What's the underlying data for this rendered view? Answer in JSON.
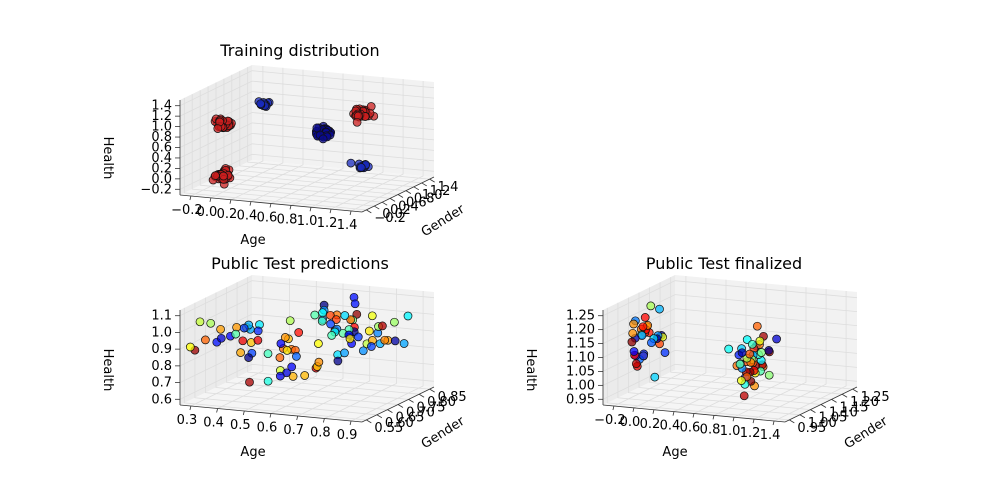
{
  "figure": {
    "background": "#ffffff",
    "pane_color": "#f2f2f2",
    "grid_color": "#dddddd"
  },
  "chart_data": [
    {
      "type": "scatter",
      "subtype": "scatter3d",
      "title": "Training distribution",
      "xlabel": "Age",
      "ylabel": "Gender",
      "zlabel": "Health",
      "x_ticks": [
        "−0.2",
        "0.0",
        "0.2",
        "0.4",
        "0.6",
        "0.8",
        "1.0",
        "1.2",
        "1.4"
      ],
      "y_ticks": [
        "−0.2",
        "0.0",
        "0.2",
        "0.4",
        "0.6",
        "0.8",
        "1.0",
        "1.2",
        "1.4"
      ],
      "z_ticks": [
        "−0.2",
        "0.0",
        "0.2",
        "0.4",
        "0.6",
        "0.8",
        "1.0",
        "1.2",
        "1.4"
      ],
      "xlim": [
        -0.2,
        1.4
      ],
      "ylim": [
        -0.2,
        1.4
      ],
      "zlim": [
        -0.2,
        1.4
      ],
      "grid": true,
      "colormap": "jet",
      "clusters": [
        {
          "x": 0.0,
          "y": 0.0,
          "z": 1.0,
          "color": "#cc1f1f",
          "n": 40,
          "spread": 0.04
        },
        {
          "x": 1.0,
          "y": 0.0,
          "z": 1.0,
          "color": "#0b0b8f",
          "n": 40,
          "spread": 0.04
        },
        {
          "x": 0.0,
          "y": 1.0,
          "z": 1.0,
          "color": "#1a2bbf",
          "n": 14,
          "spread": 0.03
        },
        {
          "x": 0.0,
          "y": 0.0,
          "z": 0.0,
          "color": "#cc1f1f",
          "n": 40,
          "spread": 0.04
        },
        {
          "x": 1.0,
          "y": 1.0,
          "z": 1.0,
          "color": "#cc1f1f",
          "n": 40,
          "spread": 0.04
        },
        {
          "x": 1.0,
          "y": 1.0,
          "z": 0.0,
          "color": "#1a2bbf",
          "n": 14,
          "spread": 0.03
        }
      ]
    },
    {
      "type": "scatter",
      "subtype": "scatter3d",
      "title": "Public Test predictions",
      "xlabel": "Age",
      "ylabel": "Gender",
      "zlabel": "Health",
      "x_ticks": [
        "0.3",
        "0.4",
        "0.5",
        "0.6",
        "0.7",
        "0.8",
        "0.9"
      ],
      "y_ticks": [
        "0.55",
        "0.60",
        "0.65",
        "0.70",
        "0.75",
        "0.80",
        "0.85"
      ],
      "z_ticks": [
        "0.6",
        "0.7",
        "0.8",
        "0.9",
        "1.0",
        "1.1"
      ],
      "xlim": [
        0.3,
        0.9
      ],
      "ylim": [
        0.55,
        0.85
      ],
      "zlim": [
        0.6,
        1.1
      ],
      "grid": true,
      "colormap": "jet",
      "clusters": [
        {
          "x": 0.4,
          "y": 0.6,
          "z": 0.95,
          "color": "mixed",
          "n": 25,
          "spread": 0.06
        },
        {
          "x": 0.6,
          "y": 0.6,
          "z": 0.85,
          "color": "mixed",
          "n": 20,
          "spread": 0.06
        },
        {
          "x": 0.7,
          "y": 0.7,
          "z": 1.0,
          "color": "mixed",
          "n": 30,
          "spread": 0.06
        },
        {
          "x": 0.85,
          "y": 0.72,
          "z": 0.95,
          "color": "mixed",
          "n": 20,
          "spread": 0.05
        }
      ]
    },
    {
      "type": "scatter",
      "subtype": "scatter3d",
      "title": "Public Test finalized",
      "xlabel": "Age",
      "ylabel": "Gender",
      "zlabel": "Health",
      "x_ticks": [
        "−0.2",
        "0.0",
        "0.2",
        "0.4",
        "0.6",
        "0.8",
        "1.0",
        "1.2",
        "1.4"
      ],
      "y_ticks": [
        "0.95",
        "1.00",
        "1.05",
        "1.10",
        "1.15",
        "1.20",
        "1.25"
      ],
      "z_ticks": [
        "0.95",
        "1.00",
        "1.05",
        "1.10",
        "1.15",
        "1.20",
        "1.25"
      ],
      "xlim": [
        -0.2,
        1.4
      ],
      "ylim": [
        0.95,
        1.25
      ],
      "zlim": [
        0.95,
        1.25
      ],
      "grid": true,
      "colormap": "jet",
      "clusters": [
        {
          "x": 0.0,
          "y": 1.0,
          "z": 1.15,
          "color": "mixed",
          "n": 35,
          "spread": 0.04
        },
        {
          "x": 1.0,
          "y": 1.0,
          "z": 1.1,
          "color": "mixed",
          "n": 45,
          "spread": 0.04
        }
      ]
    }
  ]
}
